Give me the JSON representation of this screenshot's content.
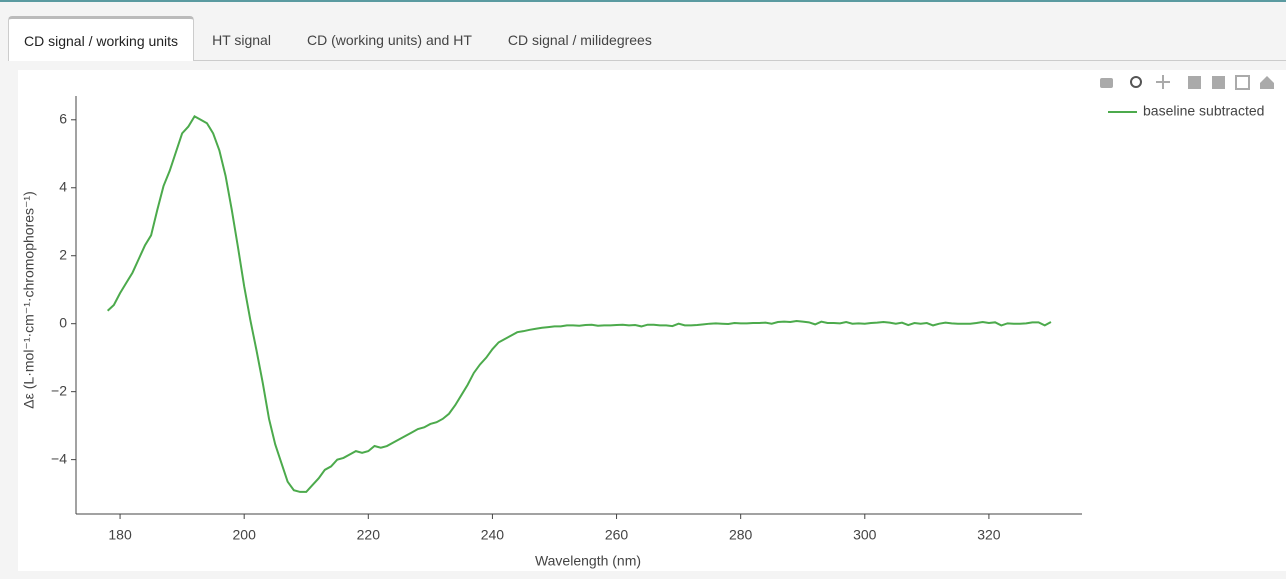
{
  "tabs": [
    "CD signal / working units",
    "HT signal",
    "CD (working units) and HT",
    "CD signal / milidegrees"
  ],
  "active_tab": 0,
  "chart_data": {
    "type": "line",
    "x_label": "Wavelength (nm)",
    "y_label": "Δε (L·mol⁻¹·cm⁻¹·chromophores⁻¹)",
    "x": [
      178,
      179,
      180,
      181,
      182,
      183,
      184,
      185,
      186,
      187,
      188,
      189,
      190,
      191,
      192,
      193,
      194,
      195,
      196,
      197,
      198,
      199,
      200,
      201,
      202,
      203,
      204,
      205,
      206,
      207,
      208,
      209,
      210,
      211,
      212,
      213,
      214,
      215,
      216,
      217,
      218,
      219,
      220,
      221,
      222,
      223,
      224,
      225,
      226,
      227,
      228,
      229,
      230,
      231,
      232,
      233,
      234,
      235,
      236,
      237,
      238,
      239,
      240,
      241,
      242,
      243,
      244,
      245,
      246,
      247,
      248,
      249,
      250,
      251,
      252,
      253,
      254,
      255,
      256,
      257,
      258,
      259,
      260,
      261,
      262,
      263,
      264,
      265,
      266,
      267,
      268,
      269,
      270,
      271,
      272,
      273,
      274,
      275,
      276,
      277,
      278,
      279,
      280,
      281,
      282,
      283,
      284,
      285,
      286,
      287,
      288,
      289,
      290,
      291,
      292,
      293,
      294,
      295,
      296,
      297,
      298,
      299,
      300,
      301,
      302,
      303,
      304,
      305,
      306,
      307,
      308,
      309,
      310,
      311,
      312,
      313,
      314,
      315,
      316,
      317,
      318,
      319,
      320,
      321,
      322,
      323,
      324,
      325,
      326,
      327,
      328,
      329,
      330
    ],
    "series": [
      {
        "name": "baseline subtracted",
        "color": "#4caa4c",
        "values": [
          0.38,
          0.55,
          0.9,
          1.2,
          1.5,
          1.9,
          2.3,
          2.6,
          3.35,
          4.05,
          4.5,
          5.05,
          5.6,
          5.8,
          6.1,
          6.0,
          5.9,
          5.6,
          5.1,
          4.35,
          3.35,
          2.25,
          1.1,
          0.1,
          -0.8,
          -1.75,
          -2.8,
          -3.55,
          -4.1,
          -4.65,
          -4.9,
          -4.95,
          -4.95,
          -4.75,
          -4.55,
          -4.3,
          -4.2,
          -4.0,
          -3.95,
          -3.85,
          -3.75,
          -3.8,
          -3.75,
          -3.6,
          -3.65,
          -3.6,
          -3.5,
          -3.4,
          -3.3,
          -3.2,
          -3.1,
          -3.05,
          -2.95,
          -2.9,
          -2.8,
          -2.65,
          -2.4,
          -2.1,
          -1.8,
          -1.45,
          -1.2,
          -1.0,
          -0.75,
          -0.55,
          -0.45,
          -0.35,
          -0.25,
          -0.22,
          -0.18,
          -0.15,
          -0.12,
          -0.1,
          -0.08,
          -0.08,
          -0.05,
          -0.05,
          -0.06,
          -0.04,
          -0.03,
          -0.06,
          -0.05,
          -0.05,
          -0.04,
          -0.03,
          -0.05,
          -0.04,
          -0.08,
          -0.03,
          -0.03,
          -0.05,
          -0.05,
          -0.07,
          0.0,
          -0.05,
          -0.05,
          -0.04,
          -0.02,
          0.0,
          0.01,
          0.0,
          -0.01,
          0.02,
          0.01,
          0.01,
          0.02,
          0.02,
          0.03,
          0.0,
          0.05,
          0.06,
          0.05,
          0.08,
          0.06,
          0.04,
          -0.02,
          0.06,
          0.02,
          0.02,
          0.01,
          0.05,
          0.0,
          0.01,
          0.0,
          0.02,
          0.03,
          0.05,
          0.03,
          0.0,
          0.03,
          -0.04,
          0.02,
          0.0,
          0.02,
          -0.05,
          0.0,
          0.03,
          0.01,
          0.0,
          0.0,
          0.0,
          0.02,
          0.05,
          0.02,
          0.04,
          -0.05,
          0.01,
          0.0,
          0.0,
          0.01,
          0.04,
          0.04,
          -0.05,
          0.05
        ]
      }
    ],
    "xlim": [
      172.9,
      335
    ],
    "ylim": [
      -5.6,
      6.7
    ],
    "xticks": [
      180,
      200,
      220,
      240,
      260,
      280,
      300,
      320
    ],
    "yticks": [
      {
        "value": -4,
        "label": "−4"
      },
      {
        "value": -2,
        "label": "−2"
      },
      0,
      2,
      4,
      6
    ],
    "legend": "top-right",
    "grid": false
  }
}
